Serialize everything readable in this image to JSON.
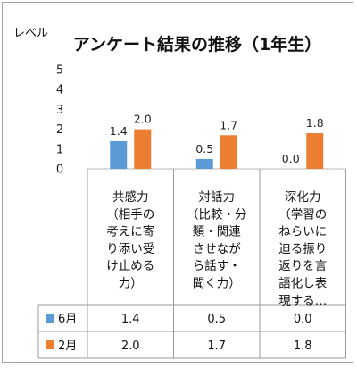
{
  "chart_data": {
    "type": "bar",
    "title": "アンケート結果の推移（1年生）",
    "ylabel": "レベル",
    "ylim": [
      0,
      5
    ],
    "yticks": [
      0,
      1,
      2,
      3,
      4,
      5
    ],
    "grid": false,
    "legend": "table",
    "categories": [
      [
        "共感力",
        "（相手の",
        "考えに寄",
        "り添い受",
        "け止める",
        "力）"
      ],
      [
        "対話力",
        "（比較・分",
        "類・関連",
        "させなが",
        "ら話す・",
        "聞く力）"
      ],
      [
        "深化力",
        "（学習の",
        "ねらいに",
        "迫る振り",
        "返りを言",
        "語化し表",
        "現する…"
      ]
    ],
    "series": [
      {
        "name": "6月",
        "color": "#5b9bd5",
        "values": [
          1.4,
          0.5,
          0.0
        ],
        "labels": [
          "1.4",
          "0.5",
          "0.0"
        ]
      },
      {
        "name": "2月",
        "color": "#ed7d31",
        "values": [
          2.0,
          1.7,
          1.8
        ],
        "labels": [
          "2.0",
          "1.7",
          "1.8"
        ]
      }
    ]
  }
}
